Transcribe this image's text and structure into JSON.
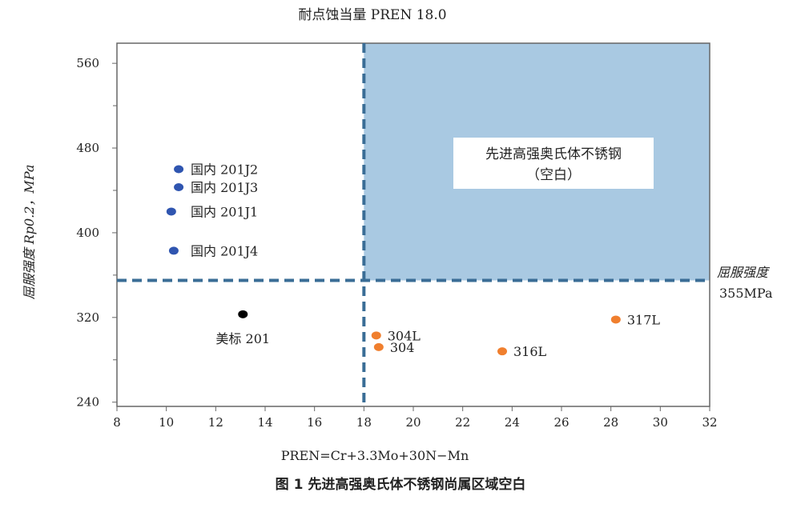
{
  "chart_data": {
    "type": "scatter",
    "title": "耐点蚀当量 PREN 18.0",
    "xlabel": "PREN=Cr+3.3Mo+30N−Mn",
    "ylabel": "屈服强度 Rp0.2，MPa",
    "caption": "图 1 先进高强奥氏体不锈钢尚属区域空白",
    "xlim": [
      8,
      32
    ],
    "ylim": [
      236,
      579
    ],
    "xticks": [
      8,
      10,
      12,
      14,
      16,
      18,
      20,
      22,
      24,
      26,
      28,
      30,
      32
    ],
    "yticks": [
      240,
      320,
      400,
      480,
      560
    ],
    "yminor_ticks": [
      280,
      360,
      440,
      520
    ],
    "grid": false,
    "thresholds": {
      "pren": 18.0,
      "yield": 355
    },
    "threshold_label": [
      "屈服强度",
      "355MPa"
    ],
    "region": {
      "x": [
        18,
        32
      ],
      "y": [
        355,
        579
      ],
      "color": "#a9c9e2",
      "label": [
        "先进高强奥氏体不锈钢",
        "（空白）"
      ]
    },
    "line_color": "#3a6d96",
    "series": [
      {
        "color": "#2f55b0",
        "points": [
          {
            "label": "国内 201J2",
            "x": 10.5,
            "y": 460
          },
          {
            "label": "国内 201J3",
            "x": 10.5,
            "y": 443
          },
          {
            "label": "国内 201J1",
            "x": 10.2,
            "y": 420
          },
          {
            "label": "国内 201J4",
            "x": 10.3,
            "y": 383
          }
        ]
      },
      {
        "color": "#000000",
        "points": [
          {
            "label": "美标 201",
            "x": 13.1,
            "y": 323
          }
        ]
      },
      {
        "color": "#f07f2e",
        "points": [
          {
            "label": "304L",
            "x": 18.5,
            "y": 303
          },
          {
            "label": "304",
            "x": 18.6,
            "y": 292
          },
          {
            "label": "316L",
            "x": 23.6,
            "y": 288
          },
          {
            "label": "317L",
            "x": 28.2,
            "y": 318
          }
        ]
      }
    ]
  }
}
